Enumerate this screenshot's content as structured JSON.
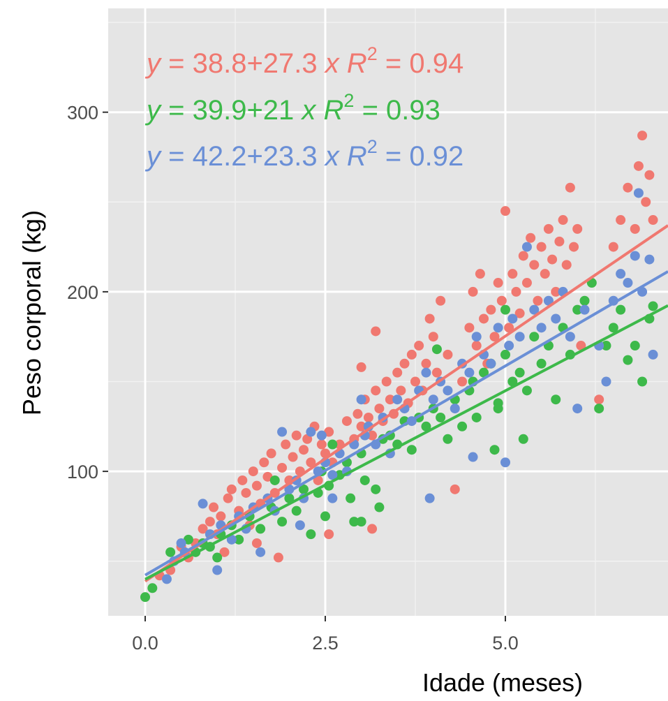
{
  "chart_data": {
    "type": "scatter",
    "title": "",
    "xlabel": "Idade (meses)",
    "ylabel": "Peso corporal (kg)",
    "xlim": [
      -0.5,
      7.1
    ],
    "ylim": [
      25,
      350
    ],
    "x_ticks": [
      0.0,
      2.5,
      5.0
    ],
    "x_tick_labels": [
      "0.0",
      "2.5",
      "5.0"
    ],
    "y_ticks": [
      100,
      200,
      300
    ],
    "y_tick_labels": [
      "100",
      "200",
      "300"
    ],
    "grid": true,
    "background": "#e5e5e5",
    "legend": "none",
    "series": [
      {
        "color": "#f07870",
        "intercept": 38.8,
        "slope": 27.3,
        "equation": "y = 38.8+27.3 x   R² = 0.94",
        "eq_parts": {
          "y": "y",
          "eq": " = 38.8+27.3 ",
          "x": "x",
          "r": "R",
          "sup": "2",
          "val": " = 0.94"
        },
        "points": [
          [
            0.2,
            42
          ],
          [
            0.35,
            45
          ],
          [
            0.5,
            58
          ],
          [
            0.6,
            52
          ],
          [
            0.7,
            60
          ],
          [
            0.8,
            68
          ],
          [
            0.9,
            72
          ],
          [
            0.95,
            80
          ],
          [
            1.0,
            65
          ],
          [
            1.05,
            75
          ],
          [
            1.1,
            55
          ],
          [
            1.15,
            85
          ],
          [
            1.2,
            90
          ],
          [
            1.3,
            78
          ],
          [
            1.35,
            95
          ],
          [
            1.4,
            88
          ],
          [
            1.45,
            70
          ],
          [
            1.5,
            100
          ],
          [
            1.55,
            92
          ],
          [
            1.6,
            82
          ],
          [
            1.65,
            105
          ],
          [
            1.7,
            97
          ],
          [
            1.75,
            110
          ],
          [
            1.8,
            88
          ],
          [
            1.85,
            52
          ],
          [
            1.9,
            102
          ],
          [
            1.95,
            115
          ],
          [
            2.0,
            95
          ],
          [
            2.05,
            108
          ],
          [
            2.1,
            120
          ],
          [
            2.15,
            100
          ],
          [
            2.2,
            112
          ],
          [
            2.25,
            118
          ],
          [
            2.3,
            105
          ],
          [
            2.35,
            125
          ],
          [
            2.4,
            95
          ],
          [
            2.45,
            115
          ],
          [
            2.5,
            110
          ],
          [
            2.55,
            122
          ],
          [
            2.6,
            105
          ],
          [
            2.7,
            115
          ],
          [
            2.8,
            128
          ],
          [
            2.9,
            118
          ],
          [
            2.95,
            132
          ],
          [
            3.0,
            125
          ],
          [
            3.05,
            140
          ],
          [
            3.1,
            130
          ],
          [
            3.15,
            120
          ],
          [
            3.2,
            145
          ],
          [
            3.25,
            135
          ],
          [
            3.3,
            128
          ],
          [
            3.35,
            150
          ],
          [
            3.4,
            140
          ],
          [
            3.45,
            132
          ],
          [
            3.5,
            155
          ],
          [
            3.55,
            145
          ],
          [
            3.6,
            160
          ],
          [
            3.65,
            138
          ],
          [
            3.7,
            165
          ],
          [
            3.75,
            150
          ],
          [
            3.8,
            170
          ],
          [
            3.85,
            145
          ],
          [
            3.9,
            160
          ],
          [
            3.95,
            185
          ],
          [
            4.0,
            175
          ],
          [
            4.05,
            155
          ],
          [
            4.1,
            195
          ],
          [
            4.2,
            165
          ],
          [
            4.3,
            90
          ],
          [
            4.4,
            150
          ],
          [
            4.5,
            180
          ],
          [
            4.55,
            200
          ],
          [
            4.6,
            170
          ],
          [
            4.65,
            210
          ],
          [
            4.7,
            185
          ],
          [
            4.75,
            160
          ],
          [
            4.8,
            190
          ],
          [
            4.85,
            175
          ],
          [
            4.9,
            205
          ],
          [
            4.95,
            195
          ],
          [
            5.0,
            245
          ],
          [
            5.05,
            180
          ],
          [
            5.1,
            210
          ],
          [
            5.15,
            200
          ],
          [
            5.2,
            188
          ],
          [
            5.25,
            220
          ],
          [
            5.3,
            205
          ],
          [
            5.35,
            230
          ],
          [
            5.4,
            215
          ],
          [
            5.45,
            195
          ],
          [
            5.5,
            225
          ],
          [
            5.55,
            210
          ],
          [
            5.6,
            235
          ],
          [
            5.65,
            218
          ],
          [
            5.7,
            200
          ],
          [
            5.75,
            228
          ],
          [
            5.8,
            240
          ],
          [
            5.85,
            215
          ],
          [
            5.9,
            258
          ],
          [
            5.95,
            225
          ],
          [
            6.0,
            235
          ],
          [
            6.05,
            170
          ],
          [
            6.3,
            140
          ],
          [
            6.5,
            225
          ],
          [
            6.6,
            240
          ],
          [
            6.7,
            258
          ],
          [
            6.8,
            235
          ],
          [
            6.85,
            270
          ],
          [
            6.9,
            287
          ],
          [
            6.95,
            250
          ],
          [
            7.0,
            265
          ],
          [
            7.05,
            240
          ],
          [
            3.2,
            178
          ],
          [
            3.15,
            68
          ],
          [
            2.55,
            65
          ],
          [
            3.0,
            158
          ],
          [
            1.55,
            60
          ]
        ]
      },
      {
        "color": "#3db94a",
        "intercept": 39.9,
        "slope": 21,
        "equation": "y = 39.9+21 x   R² = 0.93",
        "eq_parts": {
          "y": "y",
          "eq": " = 39.9+21 ",
          "x": "x",
          "r": "R",
          "sup": "2",
          "val": " = 0.93"
        },
        "points": [
          [
            0.0,
            30
          ],
          [
            0.1,
            35
          ],
          [
            0.35,
            55
          ],
          [
            0.6,
            62
          ],
          [
            0.7,
            55
          ],
          [
            0.8,
            60
          ],
          [
            0.9,
            58
          ],
          [
            1.0,
            52
          ],
          [
            1.05,
            65
          ],
          [
            1.2,
            70
          ],
          [
            1.3,
            62
          ],
          [
            1.45,
            75
          ],
          [
            1.6,
            68
          ],
          [
            1.75,
            80
          ],
          [
            1.8,
            95
          ],
          [
            1.9,
            72
          ],
          [
            2.0,
            85
          ],
          [
            2.1,
            78
          ],
          [
            2.2,
            90
          ],
          [
            2.3,
            65
          ],
          [
            2.4,
            88
          ],
          [
            2.45,
            100
          ],
          [
            2.5,
            75
          ],
          [
            2.55,
            92
          ],
          [
            2.6,
            115
          ],
          [
            2.7,
            98
          ],
          [
            2.8,
            105
          ],
          [
            2.85,
            85
          ],
          [
            2.9,
            72
          ],
          [
            3.0,
            110
          ],
          [
            3.05,
            95
          ],
          [
            3.1,
            125
          ],
          [
            3.2,
            90
          ],
          [
            3.25,
            80
          ],
          [
            3.3,
            118
          ],
          [
            3.4,
            120
          ],
          [
            3.5,
            115
          ],
          [
            3.6,
            128
          ],
          [
            3.7,
            112
          ],
          [
            3.8,
            130
          ],
          [
            3.9,
            125
          ],
          [
            4.0,
            135
          ],
          [
            4.05,
            168
          ],
          [
            4.1,
            130
          ],
          [
            4.2,
            118
          ],
          [
            4.3,
            140
          ],
          [
            4.4,
            125
          ],
          [
            4.5,
            145
          ],
          [
            4.55,
            150
          ],
          [
            4.6,
            130
          ],
          [
            4.7,
            155
          ],
          [
            4.8,
            160
          ],
          [
            4.85,
            112
          ],
          [
            4.9,
            135
          ],
          [
            5.0,
            165
          ],
          [
            5.1,
            150
          ],
          [
            5.2,
            155
          ],
          [
            5.25,
            118
          ],
          [
            5.3,
            145
          ],
          [
            5.4,
            175
          ],
          [
            5.5,
            160
          ],
          [
            5.6,
            170
          ],
          [
            5.7,
            140
          ],
          [
            5.8,
            180
          ],
          [
            5.9,
            165
          ],
          [
            6.0,
            190
          ],
          [
            6.1,
            195
          ],
          [
            6.2,
            205
          ],
          [
            6.3,
            135
          ],
          [
            6.4,
            170
          ],
          [
            6.5,
            180
          ],
          [
            6.6,
            190
          ],
          [
            6.7,
            162
          ],
          [
            6.8,
            170
          ],
          [
            6.9,
            150
          ],
          [
            7.0,
            185
          ],
          [
            7.05,
            192
          ],
          [
            5.0,
            190
          ],
          [
            4.9,
            138
          ],
          [
            3.0,
            72
          ]
        ]
      },
      {
        "color": "#6a8fd6",
        "intercept": 42.2,
        "slope": 23.3,
        "equation": "y = 42.2+23.3 x   R² = 0.92",
        "eq_parts": {
          "y": "y",
          "eq": " = 42.2+23.3 ",
          "x": "x",
          "r": "R",
          "sup": "2",
          "val": " = 0.92"
        },
        "points": [
          [
            0.3,
            40
          ],
          [
            0.4,
            50
          ],
          [
            0.5,
            60
          ],
          [
            0.55,
            55
          ],
          [
            0.8,
            82
          ],
          [
            0.9,
            65
          ],
          [
            1.0,
            45
          ],
          [
            1.05,
            70
          ],
          [
            1.2,
            62
          ],
          [
            1.3,
            75
          ],
          [
            1.4,
            68
          ],
          [
            1.5,
            80
          ],
          [
            1.6,
            55
          ],
          [
            1.7,
            85
          ],
          [
            1.8,
            78
          ],
          [
            1.9,
            122
          ],
          [
            2.0,
            90
          ],
          [
            2.1,
            95
          ],
          [
            2.2,
            85
          ],
          [
            2.3,
            122
          ],
          [
            2.4,
            100
          ],
          [
            2.45,
            120
          ],
          [
            2.5,
            105
          ],
          [
            2.6,
            98
          ],
          [
            2.7,
            110
          ],
          [
            2.8,
            100
          ],
          [
            2.9,
            115
          ],
          [
            3.0,
            140
          ],
          [
            3.05,
            120
          ],
          [
            3.1,
            125
          ],
          [
            3.2,
            115
          ],
          [
            3.3,
            130
          ],
          [
            3.4,
            110
          ],
          [
            3.5,
            140
          ],
          [
            3.6,
            135
          ],
          [
            3.7,
            128
          ],
          [
            3.8,
            145
          ],
          [
            3.9,
            155
          ],
          [
            3.95,
            85
          ],
          [
            4.0,
            140
          ],
          [
            4.1,
            150
          ],
          [
            4.2,
            145
          ],
          [
            4.3,
            135
          ],
          [
            4.4,
            160
          ],
          [
            4.5,
            155
          ],
          [
            4.55,
            108
          ],
          [
            4.6,
            175
          ],
          [
            4.7,
            165
          ],
          [
            4.8,
            160
          ],
          [
            4.9,
            180
          ],
          [
            5.0,
            105
          ],
          [
            5.05,
            170
          ],
          [
            5.1,
            185
          ],
          [
            5.2,
            175
          ],
          [
            5.3,
            225
          ],
          [
            5.4,
            190
          ],
          [
            5.5,
            180
          ],
          [
            5.6,
            195
          ],
          [
            5.7,
            185
          ],
          [
            5.8,
            200
          ],
          [
            5.9,
            175
          ],
          [
            6.0,
            135
          ],
          [
            6.1,
            190
          ],
          [
            6.3,
            170
          ],
          [
            6.4,
            150
          ],
          [
            6.5,
            195
          ],
          [
            6.6,
            210
          ],
          [
            6.7,
            205
          ],
          [
            6.8,
            220
          ],
          [
            6.85,
            255
          ],
          [
            6.9,
            200
          ],
          [
            7.0,
            218
          ],
          [
            7.05,
            165
          ],
          [
            2.15,
            70
          ],
          [
            2.6,
            85
          ]
        ]
      }
    ]
  }
}
